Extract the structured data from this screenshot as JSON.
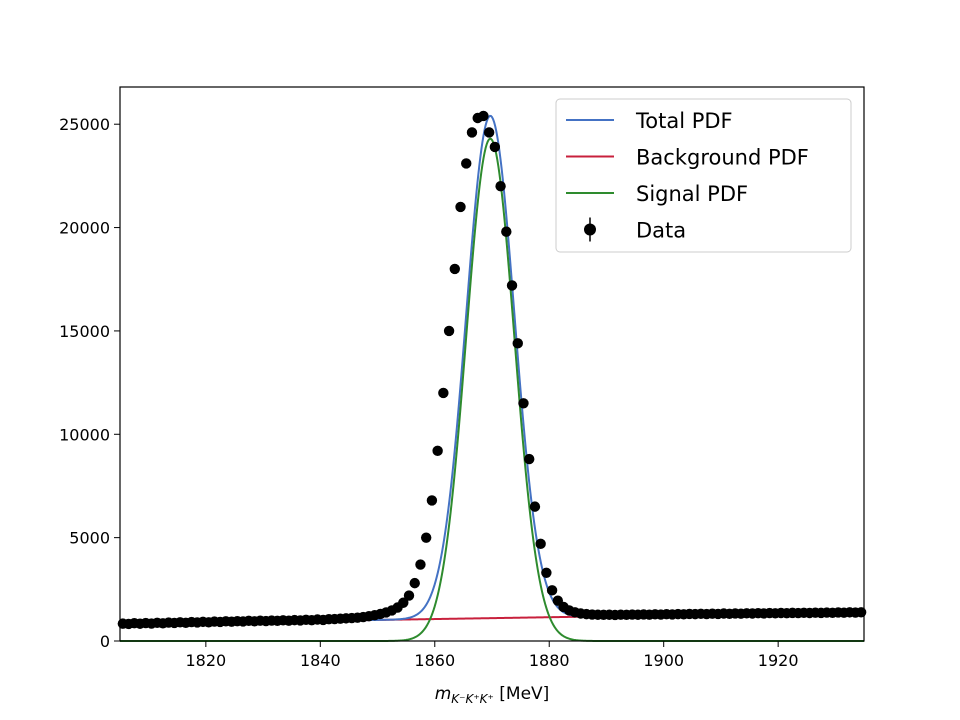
{
  "chart_data": {
    "type": "scatter",
    "title": "",
    "xlabel": {
      "prefix": "m",
      "subscript": "K⁻K⁺K⁺",
      "unit": "[MeV]"
    },
    "ylabel": "",
    "xlim": [
      1805,
      1935
    ],
    "ylim": [
      0,
      26800
    ],
    "x_ticks": [
      1820,
      1840,
      1860,
      1880,
      1900,
      1920
    ],
    "y_ticks": [
      0,
      5000,
      10000,
      15000,
      20000,
      25000
    ],
    "grid": false,
    "legend_position": "top-right",
    "legend": [
      {
        "label": "Total PDF",
        "color": "#4472c4",
        "marker": "line"
      },
      {
        "label": "Background PDF",
        "color": "#c8203c",
        "marker": "line"
      },
      {
        "label": "Signal PDF",
        "color": "#2e8b2e",
        "marker": "line"
      },
      {
        "label": "Data",
        "color": "#000000",
        "marker": "errorbar-point"
      }
    ],
    "model": {
      "signal": {
        "amplitude": 24300,
        "mean": 1869.7,
        "sigma": 4.2
      },
      "background": {
        "intercept_at_xmin": 820,
        "slope_per_mev": 4.4
      }
    },
    "data_x": [
      1805.5,
      1806.5,
      1807.5,
      1808.5,
      1809.5,
      1810.5,
      1811.5,
      1812.5,
      1813.5,
      1814.5,
      1815.5,
      1816.5,
      1817.5,
      1818.5,
      1819.5,
      1820.5,
      1821.5,
      1822.5,
      1823.5,
      1824.5,
      1825.5,
      1826.5,
      1827.5,
      1828.5,
      1829.5,
      1830.5,
      1831.5,
      1832.5,
      1833.5,
      1834.5,
      1835.5,
      1836.5,
      1837.5,
      1838.5,
      1839.5,
      1840.5,
      1841.5,
      1842.5,
      1843.5,
      1844.5,
      1845.5,
      1846.5,
      1847.5,
      1848.5,
      1849.5,
      1850.5,
      1851.5,
      1852.5,
      1853.5,
      1854.5,
      1855.5,
      1856.5,
      1857.5,
      1858.5,
      1859.5,
      1860.5,
      1861.5,
      1862.5,
      1863.5,
      1864.5,
      1865.5,
      1866.5,
      1867.5,
      1868.5,
      1869.5,
      1870.5,
      1871.5,
      1872.5,
      1873.5,
      1874.5,
      1875.5,
      1876.5,
      1877.5,
      1878.5,
      1879.5,
      1880.5,
      1881.5,
      1882.5,
      1883.5,
      1884.5,
      1885.5,
      1886.5,
      1887.5,
      1888.5,
      1889.5,
      1890.5,
      1891.5,
      1892.5,
      1893.5,
      1894.5,
      1895.5,
      1896.5,
      1897.5,
      1898.5,
      1899.5,
      1900.5,
      1901.5,
      1902.5,
      1903.5,
      1904.5,
      1905.5,
      1906.5,
      1907.5,
      1908.5,
      1909.5,
      1910.5,
      1911.5,
      1912.5,
      1913.5,
      1914.5,
      1915.5,
      1916.5,
      1917.5,
      1918.5,
      1919.5,
      1920.5,
      1921.5,
      1922.5,
      1923.5,
      1924.5,
      1925.5,
      1926.5,
      1927.5,
      1928.5,
      1929.5,
      1930.5,
      1931.5,
      1932.5,
      1933.5,
      1934.5
    ],
    "data_y": [
      840,
      825,
      860,
      835,
      870,
      845,
      880,
      855,
      890,
      875,
      905,
      880,
      915,
      900,
      925,
      905,
      940,
      920,
      950,
      935,
      960,
      945,
      975,
      950,
      985,
      965,
      990,
      975,
      1000,
      985,
      1010,
      995,
      1025,
      1005,
      1040,
      1020,
      1055,
      1060,
      1080,
      1095,
      1110,
      1130,
      1160,
      1200,
      1250,
      1310,
      1380,
      1480,
      1620,
      1850,
      2200,
      2800,
      3700,
      5000,
      6800,
      9200,
      12000,
      15000,
      18000,
      21000,
      23100,
      24600,
      25300,
      25400,
      24600,
      23900,
      22000,
      19800,
      17200,
      14400,
      11500,
      8800,
      6500,
      4700,
      3300,
      2450,
      1950,
      1650,
      1480,
      1390,
      1330,
      1300,
      1280,
      1270,
      1265,
      1270,
      1260,
      1275,
      1265,
      1280,
      1270,
      1285,
      1275,
      1290,
      1280,
      1295,
      1285,
      1300,
      1290,
      1310,
      1300,
      1315,
      1305,
      1320,
      1310,
      1330,
      1315,
      1335,
      1320,
      1340,
      1330,
      1345,
      1335,
      1350,
      1340,
      1355,
      1345,
      1360,
      1350,
      1365,
      1355,
      1370,
      1360,
      1375,
      1365,
      1380,
      1370,
      1385,
      1375,
      1390
    ]
  }
}
